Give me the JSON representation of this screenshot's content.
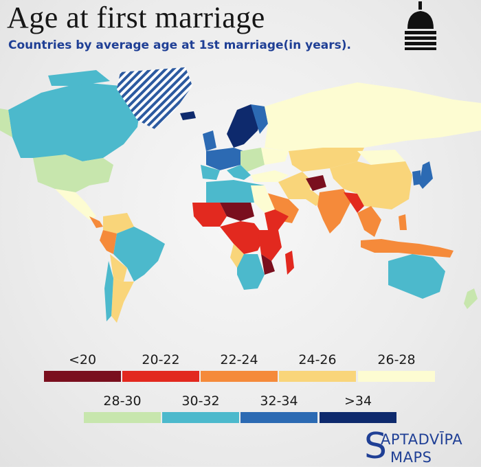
{
  "title": "Age at first marriage",
  "subtitle": "Countries by average age at 1st marriage(in years).",
  "legend": [
    {
      "label": "<20",
      "color": "#7a0f1e"
    },
    {
      "label": "20-22",
      "color": "#e2291f"
    },
    {
      "label": "22-24",
      "color": "#f58a3a"
    },
    {
      "label": "24-26",
      "color": "#f9d57a"
    },
    {
      "label": "26-28",
      "color": "#fdfcd2"
    },
    {
      "label": "28-30",
      "color": "#c7e6ad"
    },
    {
      "label": "30-32",
      "color": "#4cb9cc"
    },
    {
      "label": "32-34",
      "color": "#2c6ab3"
    },
    {
      "label": ">34",
      "color": "#0e2a6d"
    }
  ],
  "brand": {
    "line1": "APTADVĪPA",
    "line2": "MAPS",
    "initial": "S"
  },
  "logo_icon": "bell-dome-icon",
  "no_data_pattern": "diagonal-stripes"
}
